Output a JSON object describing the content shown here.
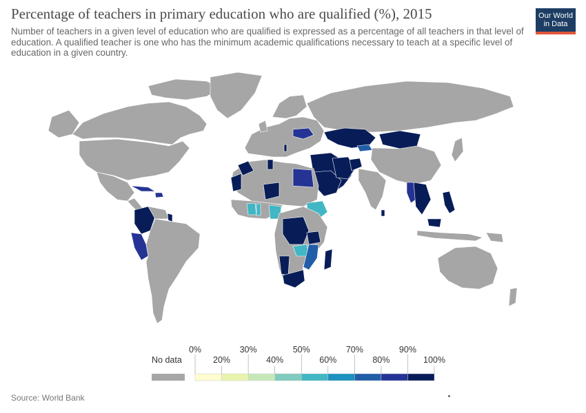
{
  "title": "Percentage of teachers in primary education who are qualified (%), 2015",
  "subtitle": "Number of teachers in a given level of education who are qualified is expressed as a percentage of all teachers in that level of education. A qualified teacher is one who has the minimum academic qualifications necessary to teach at a specific level of education in a given country.",
  "logo": {
    "line1": "Our World",
    "line2": "in Data"
  },
  "source": "Source: World Bank",
  "legend": {
    "no_data_label": "No data",
    "no_data_color": "#a6a6a6",
    "bins": [
      {
        "color": "#fffcd0"
      },
      {
        "color": "#e8f4ad"
      },
      {
        "color": "#c6e8b8"
      },
      {
        "color": "#80cbbd"
      },
      {
        "color": "#41b6c4"
      },
      {
        "color": "#1d91c0"
      },
      {
        "color": "#225ea8"
      },
      {
        "color": "#253494"
      },
      {
        "color": "#081d58"
      }
    ],
    "tick_labels": [
      "0%",
      "20%",
      "30%",
      "40%",
      "50%",
      "60%",
      "70%",
      "80%",
      "90%",
      "100%"
    ]
  },
  "colors": {
    "land": "#a6a6a6",
    "border": "#8c8c8c",
    "dark": "#081d58",
    "mid_blue": "#253494",
    "blue": "#225ea8",
    "teal": "#41b6c4",
    "light_teal": "#80cbbd"
  }
}
